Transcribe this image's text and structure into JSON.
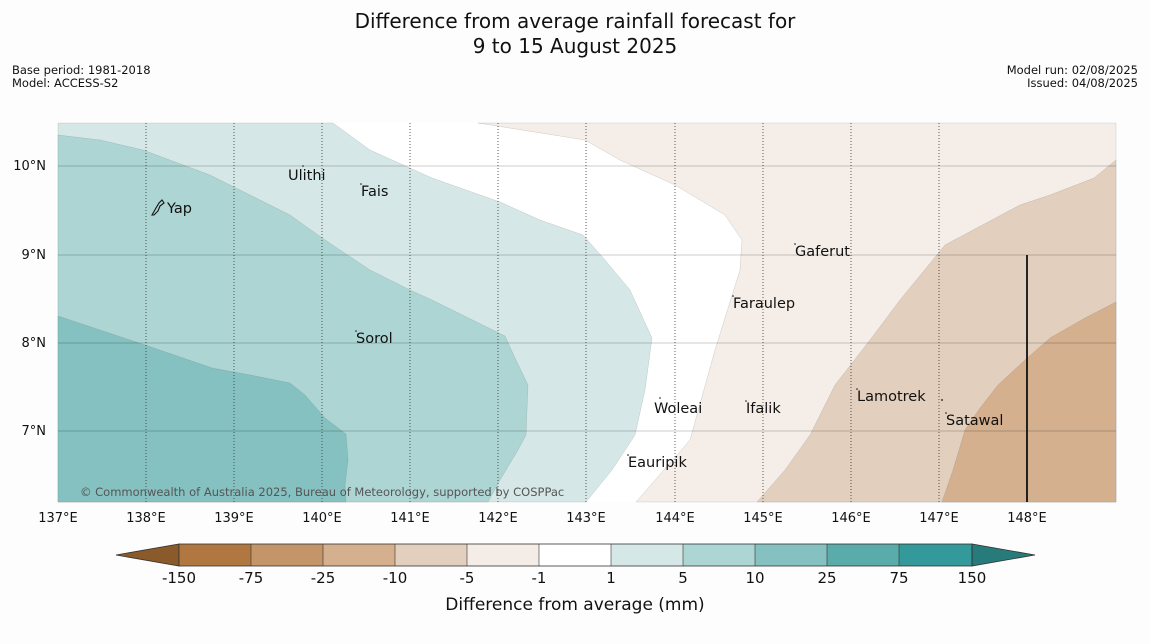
{
  "title": {
    "line1": "Difference from average rainfall forecast for",
    "line2": "9 to 15 August 2025"
  },
  "meta_left": {
    "base_period": "Base period: 1981-2018",
    "model": "Model: ACCESS-S2"
  },
  "meta_right": {
    "model_run": "Model run: 02/08/2025",
    "issued": "Issued: 04/08/2025"
  },
  "copyright": "© Commonwealth of Australia 2025, Bureau of Meteorology, supported by COSPPac",
  "map": {
    "lon_range": [
      137,
      149
    ],
    "lat_range": [
      6.2,
      10.5
    ],
    "lon_ticks": [
      "137°E",
      "138°E",
      "139°E",
      "140°E",
      "141°E",
      "142°E",
      "143°E",
      "144°E",
      "145°E",
      "146°E",
      "147°E",
      "148°E"
    ],
    "lat_ticks": [
      "7°N",
      "8°N",
      "9°N",
      "10°N"
    ],
    "islands": [
      {
        "name": "Ulithi",
        "lon": 139.8,
        "lat": 9.95
      },
      {
        "name": "Fais",
        "lon": 140.45,
        "lat": 9.76
      },
      {
        "name": "Yap",
        "lon": 138.15,
        "lat": 9.54
      },
      {
        "name": "Gaferut",
        "lon": 145.4,
        "lat": 9.1
      },
      {
        "name": "Faraulep",
        "lon": 144.7,
        "lat": 8.5
      },
      {
        "name": "Sorol",
        "lon": 140.4,
        "lat": 8.07
      },
      {
        "name": "Woleai",
        "lon": 143.9,
        "lat": 7.32
      },
      {
        "name": "Ifalik",
        "lon": 144.85,
        "lat": 7.25
      },
      {
        "name": "Lamotrek",
        "lon": 146.05,
        "lat": 7.45
      },
      {
        "name": "Satawal",
        "lon": 147.1,
        "lat": 7.18
      },
      {
        "name": "Eauripik",
        "lon": 143.5,
        "lat": 6.7
      }
    ]
  },
  "colors": {
    "c_below_150": "#8b5a2b",
    "c_m150_m75": "#b07740",
    "c_m75_m25": "#c39569",
    "c_m25_m10": "#d4b08f",
    "c_m10_m5": "#e3cfbd",
    "c_m5_m1": "#f4ece6",
    "c_m1_1": "#ffffff",
    "c_1_5": "#d5e8e7",
    "c_5_10": "#acd5d4",
    "c_10_25": "#84c1c0",
    "c_25_75": "#5aacab",
    "c_75_150": "#33999a",
    "c_above_150": "#277b7b"
  },
  "colorbar": {
    "label": "Difference from average (mm)",
    "ticks": [
      "-150",
      "-75",
      "-25",
      "-10",
      "-5",
      "-1",
      "1",
      "5",
      "10",
      "25",
      "75",
      "150"
    ]
  }
}
